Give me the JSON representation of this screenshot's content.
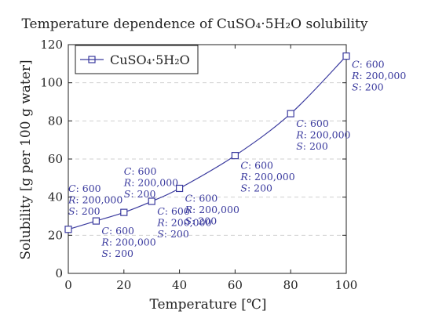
{
  "chart_data": {
    "type": "line",
    "title": "Temperature dependence of CuSO₄·5H₂O solubility",
    "xlabel": "Temperature [℃]",
    "ylabel": "Solubility [g per 100 g water]",
    "xlim": [
      0,
      100
    ],
    "ylim": [
      0,
      120
    ],
    "xticks": [
      0,
      20,
      40,
      60,
      80,
      100
    ],
    "yticks": [
      0,
      20,
      40,
      60,
      80,
      100,
      120
    ],
    "grid": "horizontal-dashed",
    "legend_position": "top-left",
    "series": [
      {
        "name": "CuSO₄·5H₂O",
        "color": "#3a3a9e",
        "marker": "square",
        "x": [
          0,
          10,
          20,
          30,
          40,
          60,
          80,
          100
        ],
        "y": [
          23.1,
          27.5,
          32.0,
          37.8,
          44.6,
          61.8,
          83.8,
          114.0
        ]
      }
    ],
    "annotations": [
      {
        "x": 0,
        "y": 23.1,
        "position": "above",
        "lines": [
          "C: 600",
          "R: 200,000",
          "S: 200"
        ]
      },
      {
        "x": 10,
        "y": 27.5,
        "position": "below",
        "lines": [
          "C: 600",
          "R: 200,000",
          "S: 200"
        ]
      },
      {
        "x": 20,
        "y": 32.0,
        "position": "above",
        "lines": [
          "C: 600",
          "R: 200,000",
          "S: 200"
        ]
      },
      {
        "x": 30,
        "y": 37.8,
        "position": "below",
        "lines": [
          "C: 600",
          "R: 200,000",
          "S: 200"
        ]
      },
      {
        "x": 40,
        "y": 44.6,
        "position": "below",
        "lines": [
          "C: 600",
          "R: 200,000",
          "S: 200"
        ]
      },
      {
        "x": 60,
        "y": 61.8,
        "position": "below",
        "lines": [
          "C: 600",
          "R: 200,000",
          "S: 200"
        ]
      },
      {
        "x": 80,
        "y": 83.8,
        "position": "below",
        "lines": [
          "C: 600",
          "R: 200,000",
          "S: 200"
        ]
      },
      {
        "x": 100,
        "y": 114.0,
        "position": "right",
        "lines": [
          "C: 600",
          "R: 200,000",
          "S: 200"
        ]
      }
    ]
  }
}
